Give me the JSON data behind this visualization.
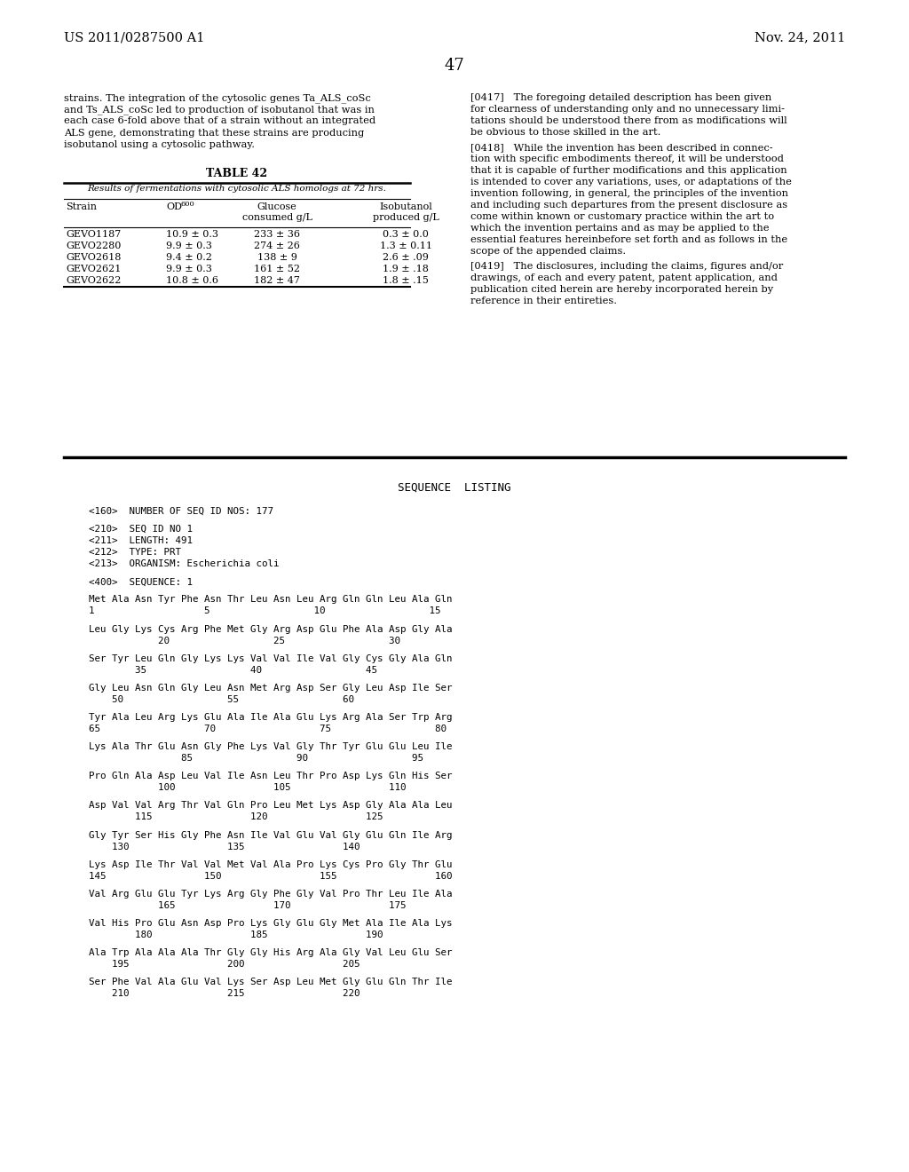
{
  "bg_color": "#ffffff",
  "header_left": "US 2011/0287500 A1",
  "header_right": "Nov. 24, 2011",
  "page_number": "47",
  "left_col_lines": [
    "strains. The integration of the cytosolic genes Ta_ALS_coSc",
    "and Ts_ALS_coSc led to production of isobutanol that was in",
    "each case 6-fold above that of a strain without an integrated",
    "ALS gene, demonstrating that these strains are producing",
    "isobutanol using a cytosolic pathway."
  ],
  "table_title": "TABLE 42",
  "table_subtitle": "Results of fermentations with cytosolic ALS homologs at 72 hrs.",
  "table_col0_header": "Strain",
  "table_col1_header": "OD600",
  "table_col2_header": "Glucose\nconsumed g/L",
  "table_col3_header": "Isobutanol\nproduced g/L",
  "table_rows": [
    [
      "GEVO1187",
      "10.9 ± 0.3",
      "233 ± 36",
      "0.3 ± 0.0"
    ],
    [
      "GEVO2280",
      "9.9 ± 0.3",
      "274 ± 26",
      "1.3 ± 0.11"
    ],
    [
      "GEVO2618",
      "9.4 ± 0.2",
      "138 ± 9",
      "2.6 ± .09"
    ],
    [
      "GEVO2621",
      "9.9 ± 0.3",
      "161 ± 52",
      "1.9 ± .18"
    ],
    [
      "GEVO2622",
      "10.8 ± 0.6",
      "182 ± 47",
      "1.8 ± .15"
    ]
  ],
  "right_col_paragraphs": [
    {
      "tag": "[0417]",
      "text": "   The foregoing detailed description has been given\nfor clearness of understanding only and no unnecessary limi-\ntations should be understood there from as modifications will\nbe obvious to those skilled in the art."
    },
    {
      "tag": "[0418]",
      "text": "   While the invention has been described in connec-\ntion with specific embodiments thereof, it will be understood\nthat it is capable of further modifications and this application\nis intended to cover any variations, uses, or adaptations of the\ninvention following, in general, the principles of the invention\nand including such departures from the present disclosure as\ncome within known or customary practice within the art to\nwhich the invention pertains and as may be applied to the\nessential features hereinbefore set forth and as follows in the\nscope of the appended claims."
    },
    {
      "tag": "[0419]",
      "text": "   The disclosures, including the claims, figures and/or\ndrawings, of each and every patent, patent application, and\npublication cited herein are hereby incorporated herein by\nreference in their entireties."
    }
  ],
  "seq_listing_header": "SEQUENCE  LISTING",
  "seq_lines": [
    "<160>  NUMBER OF SEQ ID NOS: 177",
    "",
    "<210>  SEQ ID NO 1",
    "<211>  LENGTH: 491",
    "<212>  TYPE: PRT",
    "<213>  ORGANISM: Escherichia coli",
    "",
    "<400>  SEQUENCE: 1",
    "",
    "Met Ala Asn Tyr Phe Asn Thr Leu Asn Leu Arg Gln Gln Leu Ala Gln",
    "1                   5                  10                  15",
    "",
    "Leu Gly Lys Cys Arg Phe Met Gly Arg Asp Glu Phe Ala Asp Gly Ala",
    "            20                  25                  30",
    "",
    "Ser Tyr Leu Gln Gly Lys Lys Val Val Ile Val Gly Cys Gly Ala Gln",
    "        35                  40                  45",
    "",
    "Gly Leu Asn Gln Gly Leu Asn Met Arg Asp Ser Gly Leu Asp Ile Ser",
    "    50                  55                  60",
    "",
    "Tyr Ala Leu Arg Lys Glu Ala Ile Ala Glu Lys Arg Ala Ser Trp Arg",
    "65                  70                  75                  80",
    "",
    "Lys Ala Thr Glu Asn Gly Phe Lys Val Gly Thr Tyr Glu Glu Leu Ile",
    "                85                  90                  95",
    "",
    "Pro Gln Ala Asp Leu Val Ile Asn Leu Thr Pro Asp Lys Gln His Ser",
    "            100                 105                 110",
    "",
    "Asp Val Val Arg Thr Val Gln Pro Leu Met Lys Asp Gly Ala Ala Leu",
    "        115                 120                 125",
    "",
    "Gly Tyr Ser His Gly Phe Asn Ile Val Glu Val Gly Glu Gln Ile Arg",
    "    130                 135                 140",
    "",
    "Lys Asp Ile Thr Val Val Met Val Ala Pro Lys Cys Pro Gly Thr Glu",
    "145                 150                 155                 160",
    "",
    "Val Arg Glu Glu Tyr Lys Arg Gly Phe Gly Val Pro Thr Leu Ile Ala",
    "            165                 170                 175",
    "",
    "Val His Pro Glu Asn Asp Pro Lys Gly Glu Gly Met Ala Ile Ala Lys",
    "        180                 185                 190",
    "",
    "Ala Trp Ala Ala Ala Thr Gly Gly His Arg Ala Gly Val Leu Glu Ser",
    "    195                 200                 205",
    "",
    "Ser Phe Val Ala Glu Val Lys Ser Asp Leu Met Gly Glu Gln Thr Ile",
    "    210                 215                 220"
  ]
}
